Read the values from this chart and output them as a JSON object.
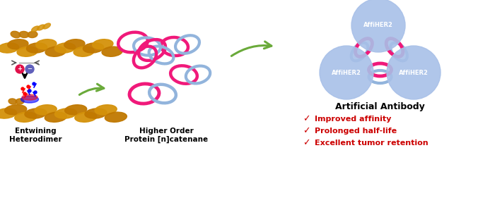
{
  "bg_color": "#ffffff",
  "label_entwining": "Entwining\nHeterodimer",
  "label_higher_order": "Higher Order\nProtein [n]catenane",
  "label_artificial": "Artificial Antibody",
  "label_affinity": "Improved affinity",
  "label_halflife": "Prolonged half-life",
  "label_tumor": "Excellent tumor retention",
  "affiher2_label": "AffiHER2",
  "ring_pink": "#F0197A",
  "ring_blue": "#92B4DC",
  "circle_blue_fill": "#A8C0E8",
  "arrow_green": "#6AAA3A",
  "text_black": "#000000",
  "text_red": "#CC0000",
  "plus_color": "#E0104A",
  "minus_color": "#6060BB",
  "gold": "#D4920A"
}
